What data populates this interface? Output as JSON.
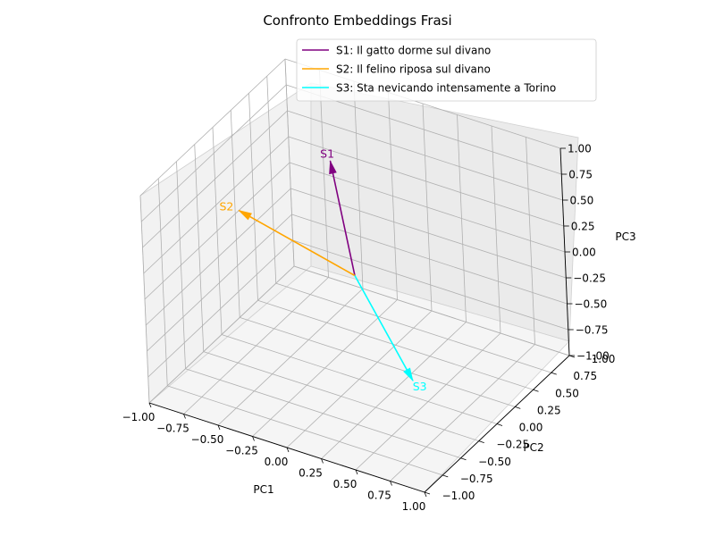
{
  "chart_data": {
    "type": "3d-vector",
    "title": "Confronto Embeddings Frasi",
    "xlabel": "PC1",
    "ylabel": "PC2",
    "zlabel": "PC3",
    "xlim": [
      -1.0,
      1.0
    ],
    "ylim": [
      -1.0,
      1.0
    ],
    "zlim": [
      -1.0,
      1.0
    ],
    "x_ticks": [
      "−1.00",
      "−0.75",
      "−0.50",
      "−0.25",
      "0.00",
      "0.25",
      "0.50",
      "0.75",
      "1.00"
    ],
    "y_ticks": [
      "−1.00",
      "−0.75",
      "−0.50",
      "−0.25",
      "0.00",
      "0.25",
      "0.50",
      "0.75",
      "1.00"
    ],
    "z_ticks": [
      "−1.00",
      "−0.75",
      "−0.50",
      "−0.25",
      "0.00",
      "0.25",
      "0.50",
      "0.75",
      "1.00"
    ],
    "grid": true,
    "legend_position": "top-right",
    "series": [
      {
        "name": "S1: Il gatto dorme sul divano",
        "label": "S1",
        "color": "#800080",
        "origin": [
          0,
          0,
          0
        ],
        "vector": [
          -0.45,
          0.55,
          0.55
        ]
      },
      {
        "name": "S2: Il felino riposa sul divano",
        "label": "S2",
        "color": "#ffa500",
        "origin": [
          0,
          0,
          0
        ],
        "vector": [
          -1.0,
          0.3,
          0.0
        ]
      },
      {
        "name": "S3: Sta nevicando intensamente a Torino",
        "label": "S3",
        "color": "#00ffff",
        "origin": [
          0,
          0,
          0
        ],
        "vector": [
          0.7,
          -0.55,
          -0.35
        ]
      }
    ]
  }
}
